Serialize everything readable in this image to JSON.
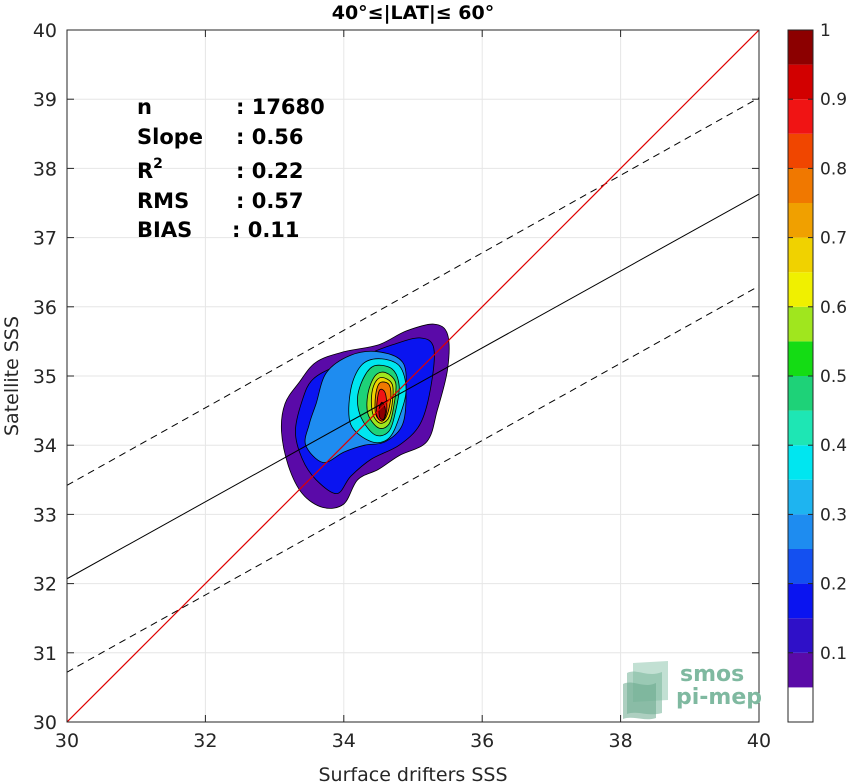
{
  "chart_data": {
    "type": "contour",
    "title": "40°≤|LAT|≤ 60°",
    "xlabel": "Surface drifters SSS",
    "ylabel": "Satellite SSS",
    "xlim": [
      30,
      40
    ],
    "ylim": [
      30,
      40
    ],
    "x_ticks": [
      "30",
      "32",
      "34",
      "36",
      "38",
      "40"
    ],
    "y_ticks": [
      "30",
      "31",
      "32",
      "33",
      "34",
      "35",
      "36",
      "37",
      "38",
      "39",
      "40"
    ],
    "grid": true,
    "stats": [
      {
        "label": "n",
        "value": ": 17680"
      },
      {
        "label": "Slope",
        "value": ": 0.56"
      },
      {
        "label": "R",
        "sup": "2",
        "value": ": 0.22"
      },
      {
        "label": "RMS",
        "value": ": 0.57"
      },
      {
        "label": "BIAS",
        "value": ": 0.11"
      }
    ],
    "identity_line": {
      "color": "#e00000",
      "points": [
        [
          30,
          30
        ],
        [
          40,
          40
        ]
      ]
    },
    "fit_line": {
      "points": [
        [
          30,
          32.07
        ],
        [
          40,
          37.63
        ]
      ]
    },
    "fit_bounds": [
      {
        "points": [
          [
            30,
            33.42
          ],
          [
            40,
            39.02
          ]
        ]
      },
      {
        "points": [
          [
            30,
            30.72
          ],
          [
            40,
            36.3
          ]
        ]
      }
    ],
    "contours": [
      {
        "level": 0.05,
        "points": [
          [
            33.1,
            34.2
          ],
          [
            33.2,
            33.7
          ],
          [
            33.4,
            33.3
          ],
          [
            33.7,
            33.1
          ],
          [
            34.0,
            33.15
          ],
          [
            34.2,
            33.5
          ],
          [
            34.5,
            33.65
          ],
          [
            34.8,
            33.85
          ],
          [
            35.2,
            34.05
          ],
          [
            35.35,
            34.5
          ],
          [
            35.5,
            35.1
          ],
          [
            35.5,
            35.6
          ],
          [
            35.3,
            35.75
          ],
          [
            34.9,
            35.65
          ],
          [
            34.5,
            35.45
          ],
          [
            34.0,
            35.35
          ],
          [
            33.6,
            35.2
          ],
          [
            33.35,
            34.9
          ],
          [
            33.15,
            34.6
          ]
        ]
      },
      {
        "level": 0.15,
        "points": [
          [
            33.3,
            34.2
          ],
          [
            33.4,
            33.8
          ],
          [
            33.6,
            33.5
          ],
          [
            33.9,
            33.3
          ],
          [
            34.1,
            33.55
          ],
          [
            34.4,
            33.8
          ],
          [
            34.8,
            34.0
          ],
          [
            35.1,
            34.3
          ],
          [
            35.25,
            34.8
          ],
          [
            35.3,
            35.4
          ],
          [
            35.1,
            35.55
          ],
          [
            34.7,
            35.45
          ],
          [
            34.3,
            35.3
          ],
          [
            33.9,
            35.15
          ],
          [
            33.55,
            34.95
          ],
          [
            33.4,
            34.65
          ]
        ]
      },
      {
        "level": 0.25,
        "points": [
          [
            33.45,
            34.0
          ],
          [
            33.7,
            33.75
          ],
          [
            34.0,
            33.9
          ],
          [
            34.3,
            34.0
          ],
          [
            34.6,
            34.05
          ],
          [
            34.85,
            34.3
          ],
          [
            34.9,
            34.8
          ],
          [
            34.85,
            35.2
          ],
          [
            34.5,
            35.35
          ],
          [
            34.1,
            35.3
          ],
          [
            33.75,
            35.05
          ],
          [
            33.6,
            34.6
          ],
          [
            33.5,
            34.3
          ]
        ]
      },
      {
        "level": 0.35,
        "points": [
          [
            34.1,
            34.3
          ],
          [
            34.4,
            34.05
          ],
          [
            34.65,
            34.1
          ],
          [
            34.8,
            34.4
          ],
          [
            34.9,
            34.8
          ],
          [
            34.8,
            35.15
          ],
          [
            34.5,
            35.25
          ],
          [
            34.25,
            35.15
          ],
          [
            34.1,
            34.8
          ]
        ]
      },
      {
        "level": 0.45,
        "points": [
          [
            34.25,
            34.4
          ],
          [
            34.45,
            34.15
          ],
          [
            34.65,
            34.2
          ],
          [
            34.75,
            34.5
          ],
          [
            34.8,
            34.85
          ],
          [
            34.7,
            35.1
          ],
          [
            34.45,
            35.15
          ],
          [
            34.3,
            35.0
          ],
          [
            34.2,
            34.7
          ]
        ]
      },
      {
        "level": 0.55,
        "points": [
          [
            34.35,
            34.45
          ],
          [
            34.5,
            34.25
          ],
          [
            34.65,
            34.3
          ],
          [
            34.72,
            34.55
          ],
          [
            34.75,
            34.9
          ],
          [
            34.6,
            35.05
          ],
          [
            34.45,
            35.0
          ],
          [
            34.35,
            34.75
          ]
        ]
      },
      {
        "level": 0.65,
        "points": [
          [
            34.42,
            34.45
          ],
          [
            34.52,
            34.32
          ],
          [
            34.64,
            34.38
          ],
          [
            34.7,
            34.6
          ],
          [
            34.7,
            34.88
          ],
          [
            34.55,
            34.98
          ],
          [
            34.45,
            34.9
          ],
          [
            34.4,
            34.7
          ]
        ]
      },
      {
        "level": 0.75,
        "points": [
          [
            34.46,
            34.45
          ],
          [
            34.55,
            34.35
          ],
          [
            34.63,
            34.45
          ],
          [
            34.68,
            34.7
          ],
          [
            34.65,
            34.88
          ],
          [
            34.52,
            34.9
          ],
          [
            34.46,
            34.72
          ]
        ]
      },
      {
        "level": 0.85,
        "points": [
          [
            34.48,
            34.42
          ],
          [
            34.56,
            34.35
          ],
          [
            34.62,
            34.5
          ],
          [
            34.6,
            34.75
          ],
          [
            34.52,
            34.8
          ],
          [
            34.48,
            34.62
          ]
        ]
      },
      {
        "level": 0.95,
        "points": [
          [
            34.52,
            34.4
          ],
          [
            34.58,
            34.38
          ],
          [
            34.6,
            34.52
          ],
          [
            34.55,
            34.62
          ],
          [
            34.51,
            34.52
          ]
        ]
      }
    ],
    "colorbar": {
      "ticks": [
        "0.1",
        "0.2",
        "0.3",
        "0.4",
        "0.5",
        "0.6",
        "0.7",
        "0.8",
        "0.9",
        "1"
      ],
      "tick_values": [
        0.1,
        0.2,
        0.3,
        0.4,
        0.5,
        0.6,
        0.7,
        0.8,
        0.9,
        1.0
      ],
      "range": [
        0,
        1
      ],
      "bands": [
        {
          "from": 0.0,
          "to": 0.05,
          "color": "#ffffff"
        },
        {
          "from": 0.05,
          "to": 0.1,
          "color": "#5a0aa8"
        },
        {
          "from": 0.1,
          "to": 0.15,
          "color": "#2f10c8"
        },
        {
          "from": 0.15,
          "to": 0.2,
          "color": "#0a14f0"
        },
        {
          "from": 0.2,
          "to": 0.25,
          "color": "#1450f0"
        },
        {
          "from": 0.25,
          "to": 0.3,
          "color": "#1e8cf0"
        },
        {
          "from": 0.3,
          "to": 0.35,
          "color": "#1eb4f0"
        },
        {
          "from": 0.35,
          "to": 0.4,
          "color": "#00e6f0"
        },
        {
          "from": 0.4,
          "to": 0.45,
          "color": "#1ee6b4"
        },
        {
          "from": 0.45,
          "to": 0.5,
          "color": "#1ed278"
        },
        {
          "from": 0.5,
          "to": 0.55,
          "color": "#14dc14"
        },
        {
          "from": 0.55,
          "to": 0.6,
          "color": "#a0e61e"
        },
        {
          "from": 0.6,
          "to": 0.65,
          "color": "#f0f000"
        },
        {
          "from": 0.65,
          "to": 0.7,
          "color": "#f0d200"
        },
        {
          "from": 0.7,
          "to": 0.75,
          "color": "#f0a000"
        },
        {
          "from": 0.75,
          "to": 0.8,
          "color": "#f07800"
        },
        {
          "from": 0.8,
          "to": 0.85,
          "color": "#f04600"
        },
        {
          "from": 0.85,
          "to": 0.9,
          "color": "#f01414"
        },
        {
          "from": 0.9,
          "to": 0.95,
          "color": "#d20000"
        },
        {
          "from": 0.95,
          "to": 1.0,
          "color": "#8c0000"
        }
      ]
    }
  },
  "logo": {
    "line1": "smos",
    "line2": "pi-mep"
  }
}
